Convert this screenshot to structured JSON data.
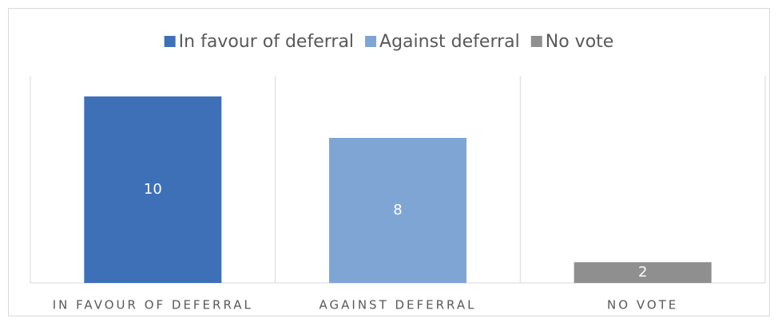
{
  "chart_data": {
    "type": "bar",
    "categories": [
      "IN FAVOUR OF DEFERRAL",
      "AGAINST DEFERRAL",
      "NO VOTE"
    ],
    "series": [
      {
        "name": "In favour of deferral",
        "color": "#3e70b8",
        "values": [
          10,
          null,
          null
        ]
      },
      {
        "name": "Against deferral",
        "color": "#7fa5d5",
        "values": [
          null,
          8,
          null
        ]
      },
      {
        "name": "No vote",
        "color": "#8f8f8f",
        "values": [
          null,
          null,
          2
        ]
      }
    ],
    "ylim": [
      1,
      11
    ],
    "legend": "top"
  }
}
